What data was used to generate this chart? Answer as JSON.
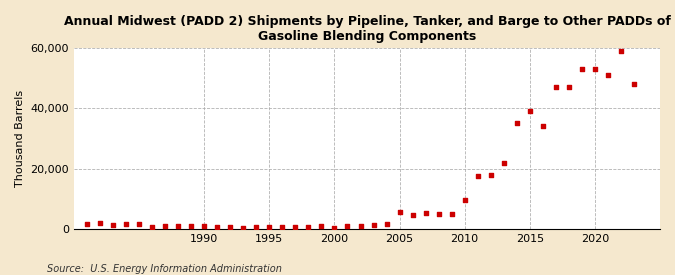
{
  "title": "Annual Midwest (PADD 2) Shipments by Pipeline, Tanker, and Barge to Other PADDs of\nGasoline Blending Components",
  "ylabel": "Thousand Barrels",
  "source": "Source:  U.S. Energy Information Administration",
  "background_color": "#f5e8ce",
  "plot_bg_color": "#ffffff",
  "marker_color": "#cc0000",
  "years": [
    1981,
    1982,
    1983,
    1984,
    1985,
    1986,
    1987,
    1988,
    1989,
    1990,
    1991,
    1992,
    1993,
    1994,
    1995,
    1996,
    1997,
    1998,
    1999,
    2000,
    2001,
    2002,
    2003,
    2004,
    2005,
    2006,
    2007,
    2008,
    2009,
    2010,
    2011,
    2012,
    2013,
    2014,
    2015,
    2016,
    2017,
    2018,
    2019,
    2020,
    2021,
    2022,
    2023
  ],
  "values": [
    1500,
    1800,
    1200,
    1600,
    1500,
    700,
    800,
    900,
    1000,
    800,
    600,
    400,
    300,
    500,
    400,
    600,
    500,
    700,
    1000,
    300,
    800,
    900,
    1200,
    1500,
    5500,
    4500,
    5200,
    4800,
    5000,
    9500,
    17500,
    18000,
    22000,
    35000,
    39000,
    34000,
    47000,
    47000,
    53000,
    53000,
    51000,
    59000,
    48000
  ],
  "ylim": [
    0,
    60000
  ],
  "yticks": [
    0,
    20000,
    40000,
    60000
  ],
  "xticks": [
    1990,
    1995,
    2000,
    2005,
    2010,
    2015,
    2020
  ],
  "xlim": [
    1980,
    2025
  ]
}
